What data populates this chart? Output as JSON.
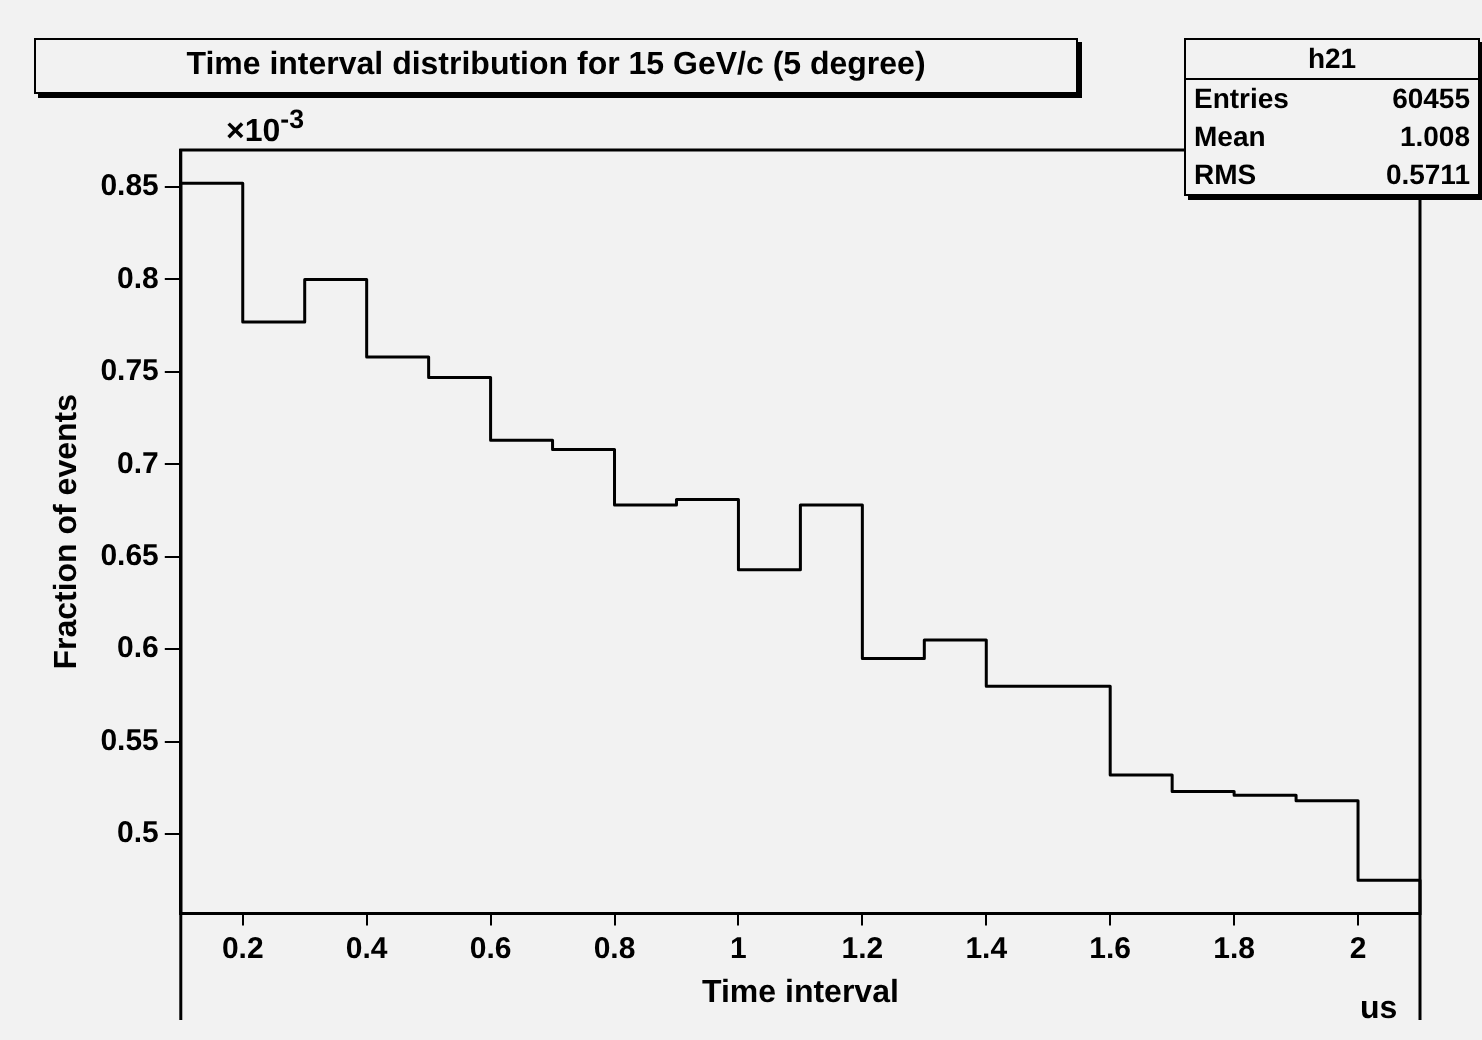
{
  "chart_data": {
    "type": "histogram",
    "title": "Time interval distribution for 15 GeV/c (5 degree)",
    "xlabel": "Time interval",
    "ylabel": "Fraction of events",
    "bins": [
      0.1,
      0.2,
      0.3,
      0.4,
      0.5,
      0.6,
      0.7,
      0.8,
      0.9,
      1.0,
      1.1,
      1.2,
      1.3,
      1.4,
      1.5,
      1.6,
      1.7,
      1.8,
      1.9,
      2.0,
      2.1
    ],
    "values": [
      0.852,
      0.777,
      0.8,
      0.758,
      0.747,
      0.713,
      0.708,
      0.678,
      0.681,
      0.643,
      0.678,
      0.595,
      0.605,
      0.58,
      0.58,
      0.532,
      0.523,
      0.521,
      0.518,
      0.475
    ],
    "color": "#000000",
    "xlim": [
      0.1,
      2.1
    ],
    "xticks": [
      0.2,
      0.4,
      0.6,
      0.8,
      1,
      1.2,
      1.4,
      1.6,
      1.8,
      2
    ],
    "ylim": [
      0.457,
      0.87
    ],
    "yticks": [
      0.5,
      0.55,
      0.6,
      0.65,
      0.7,
      0.75,
      0.8,
      0.85
    ],
    "annotations": [
      "×10$^{-3}$",
      "us",
      "h21",
      "Entries 60455",
      "Mean 1.008",
      "RMS 0.5711"
    ],
    "legend": false,
    "grid": false
  }
}
